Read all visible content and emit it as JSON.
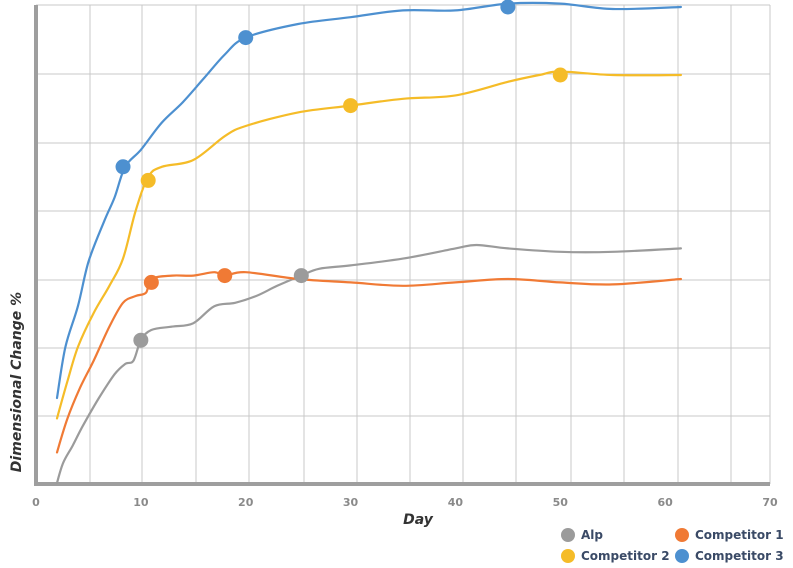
{
  "chart_data": {
    "type": "line",
    "xlabel": "Day",
    "ylabel": "Dimensional Change %",
    "xlim": [
      0,
      70
    ],
    "x_ticks": [
      "0",
      "10",
      "20",
      "30",
      "40",
      "50",
      "60",
      "70"
    ],
    "y_tick_labels_shown": false,
    "grid": true,
    "legend_position": "bottom-right",
    "series": [
      {
        "name": "Alp",
        "color": "#9b9b9b",
        "points": [
          [
            2,
            0.0
          ],
          [
            2.6,
            0.3
          ],
          [
            3.5,
            0.55
          ],
          [
            4.5,
            0.85
          ],
          [
            6,
            1.25
          ],
          [
            7.5,
            1.6
          ],
          [
            8.5,
            1.75
          ],
          [
            9.3,
            1.8
          ],
          [
            10,
            2.1
          ],
          [
            11,
            2.25
          ],
          [
            13,
            2.3
          ],
          [
            15,
            2.35
          ],
          [
            17,
            2.6
          ],
          [
            19,
            2.65
          ],
          [
            21,
            2.75
          ],
          [
            23,
            2.9
          ],
          [
            25.3,
            3.05
          ],
          [
            27,
            3.15
          ],
          [
            30,
            3.2
          ],
          [
            35,
            3.3
          ],
          [
            40,
            3.45
          ],
          [
            42,
            3.5
          ],
          [
            45,
            3.45
          ],
          [
            50,
            3.4
          ],
          [
            55,
            3.4
          ],
          [
            61.5,
            3.45
          ]
        ],
        "markers": [
          [
            10,
            2.1
          ],
          [
            25.3,
            3.05
          ]
        ]
      },
      {
        "name": "Competitor 1",
        "color": "#f07a35",
        "points": [
          [
            2,
            0.45
          ],
          [
            3,
            0.95
          ],
          [
            4.2,
            1.4
          ],
          [
            5.5,
            1.8
          ],
          [
            7,
            2.3
          ],
          [
            8.3,
            2.65
          ],
          [
            9.5,
            2.75
          ],
          [
            10.5,
            2.8
          ],
          [
            11,
            3.0
          ],
          [
            13,
            3.05
          ],
          [
            15,
            3.05
          ],
          [
            17,
            3.1
          ],
          [
            18,
            3.05
          ],
          [
            20,
            3.1
          ],
          [
            25,
            3.0
          ],
          [
            30,
            2.95
          ],
          [
            35,
            2.9
          ],
          [
            40,
            2.95
          ],
          [
            45,
            3.0
          ],
          [
            50,
            2.95
          ],
          [
            55,
            2.92
          ],
          [
            61.5,
            3.0
          ]
        ],
        "markers": [
          [
            11,
            2.95
          ],
          [
            18,
            3.05
          ]
        ]
      },
      {
        "name": "Competitor 2",
        "color": "#f5bc28",
        "points": [
          [
            2,
            0.95
          ],
          [
            3,
            1.5
          ],
          [
            4,
            2.0
          ],
          [
            5.5,
            2.5
          ],
          [
            7,
            2.9
          ],
          [
            8.3,
            3.3
          ],
          [
            9.5,
            4.0
          ],
          [
            10.7,
            4.5
          ],
          [
            12,
            4.65
          ],
          [
            15,
            4.75
          ],
          [
            18,
            5.1
          ],
          [
            20,
            5.25
          ],
          [
            25,
            5.45
          ],
          [
            30,
            5.55
          ],
          [
            35,
            5.65
          ],
          [
            40,
            5.7
          ],
          [
            45,
            5.9
          ],
          [
            48,
            6.0
          ],
          [
            50,
            6.05
          ],
          [
            55,
            6.0
          ],
          [
            61.5,
            6.0
          ]
        ],
        "markers": [
          [
            10.7,
            4.45
          ],
          [
            30,
            5.55
          ],
          [
            50,
            6.0
          ]
        ]
      },
      {
        "name": "Competitor 3",
        "color": "#4d90d0",
        "points": [
          [
            2,
            1.25
          ],
          [
            2.8,
            2.0
          ],
          [
            4,
            2.6
          ],
          [
            5,
            3.25
          ],
          [
            6.5,
            3.85
          ],
          [
            7.5,
            4.2
          ],
          [
            8.5,
            4.65
          ],
          [
            10,
            4.9
          ],
          [
            12,
            5.3
          ],
          [
            14,
            5.6
          ],
          [
            16,
            5.95
          ],
          [
            18,
            6.3
          ],
          [
            20,
            6.55
          ],
          [
            25,
            6.75
          ],
          [
            30,
            6.85
          ],
          [
            35,
            6.95
          ],
          [
            40,
            6.95
          ],
          [
            45,
            7.05
          ],
          [
            50,
            7.05
          ],
          [
            55,
            6.97
          ],
          [
            61.5,
            7.0
          ]
        ],
        "markers": [
          [
            8.3,
            4.65
          ],
          [
            20,
            6.55
          ],
          [
            45,
            7.0
          ]
        ]
      }
    ],
    "legend": [
      {
        "name": "Alp",
        "color": "#9b9b9b"
      },
      {
        "name": "Competitor 1",
        "color": "#f07a35"
      },
      {
        "name": "Competitor 2",
        "color": "#f5bc28"
      },
      {
        "name": "Competitor 3",
        "color": "#4d90d0"
      }
    ]
  }
}
